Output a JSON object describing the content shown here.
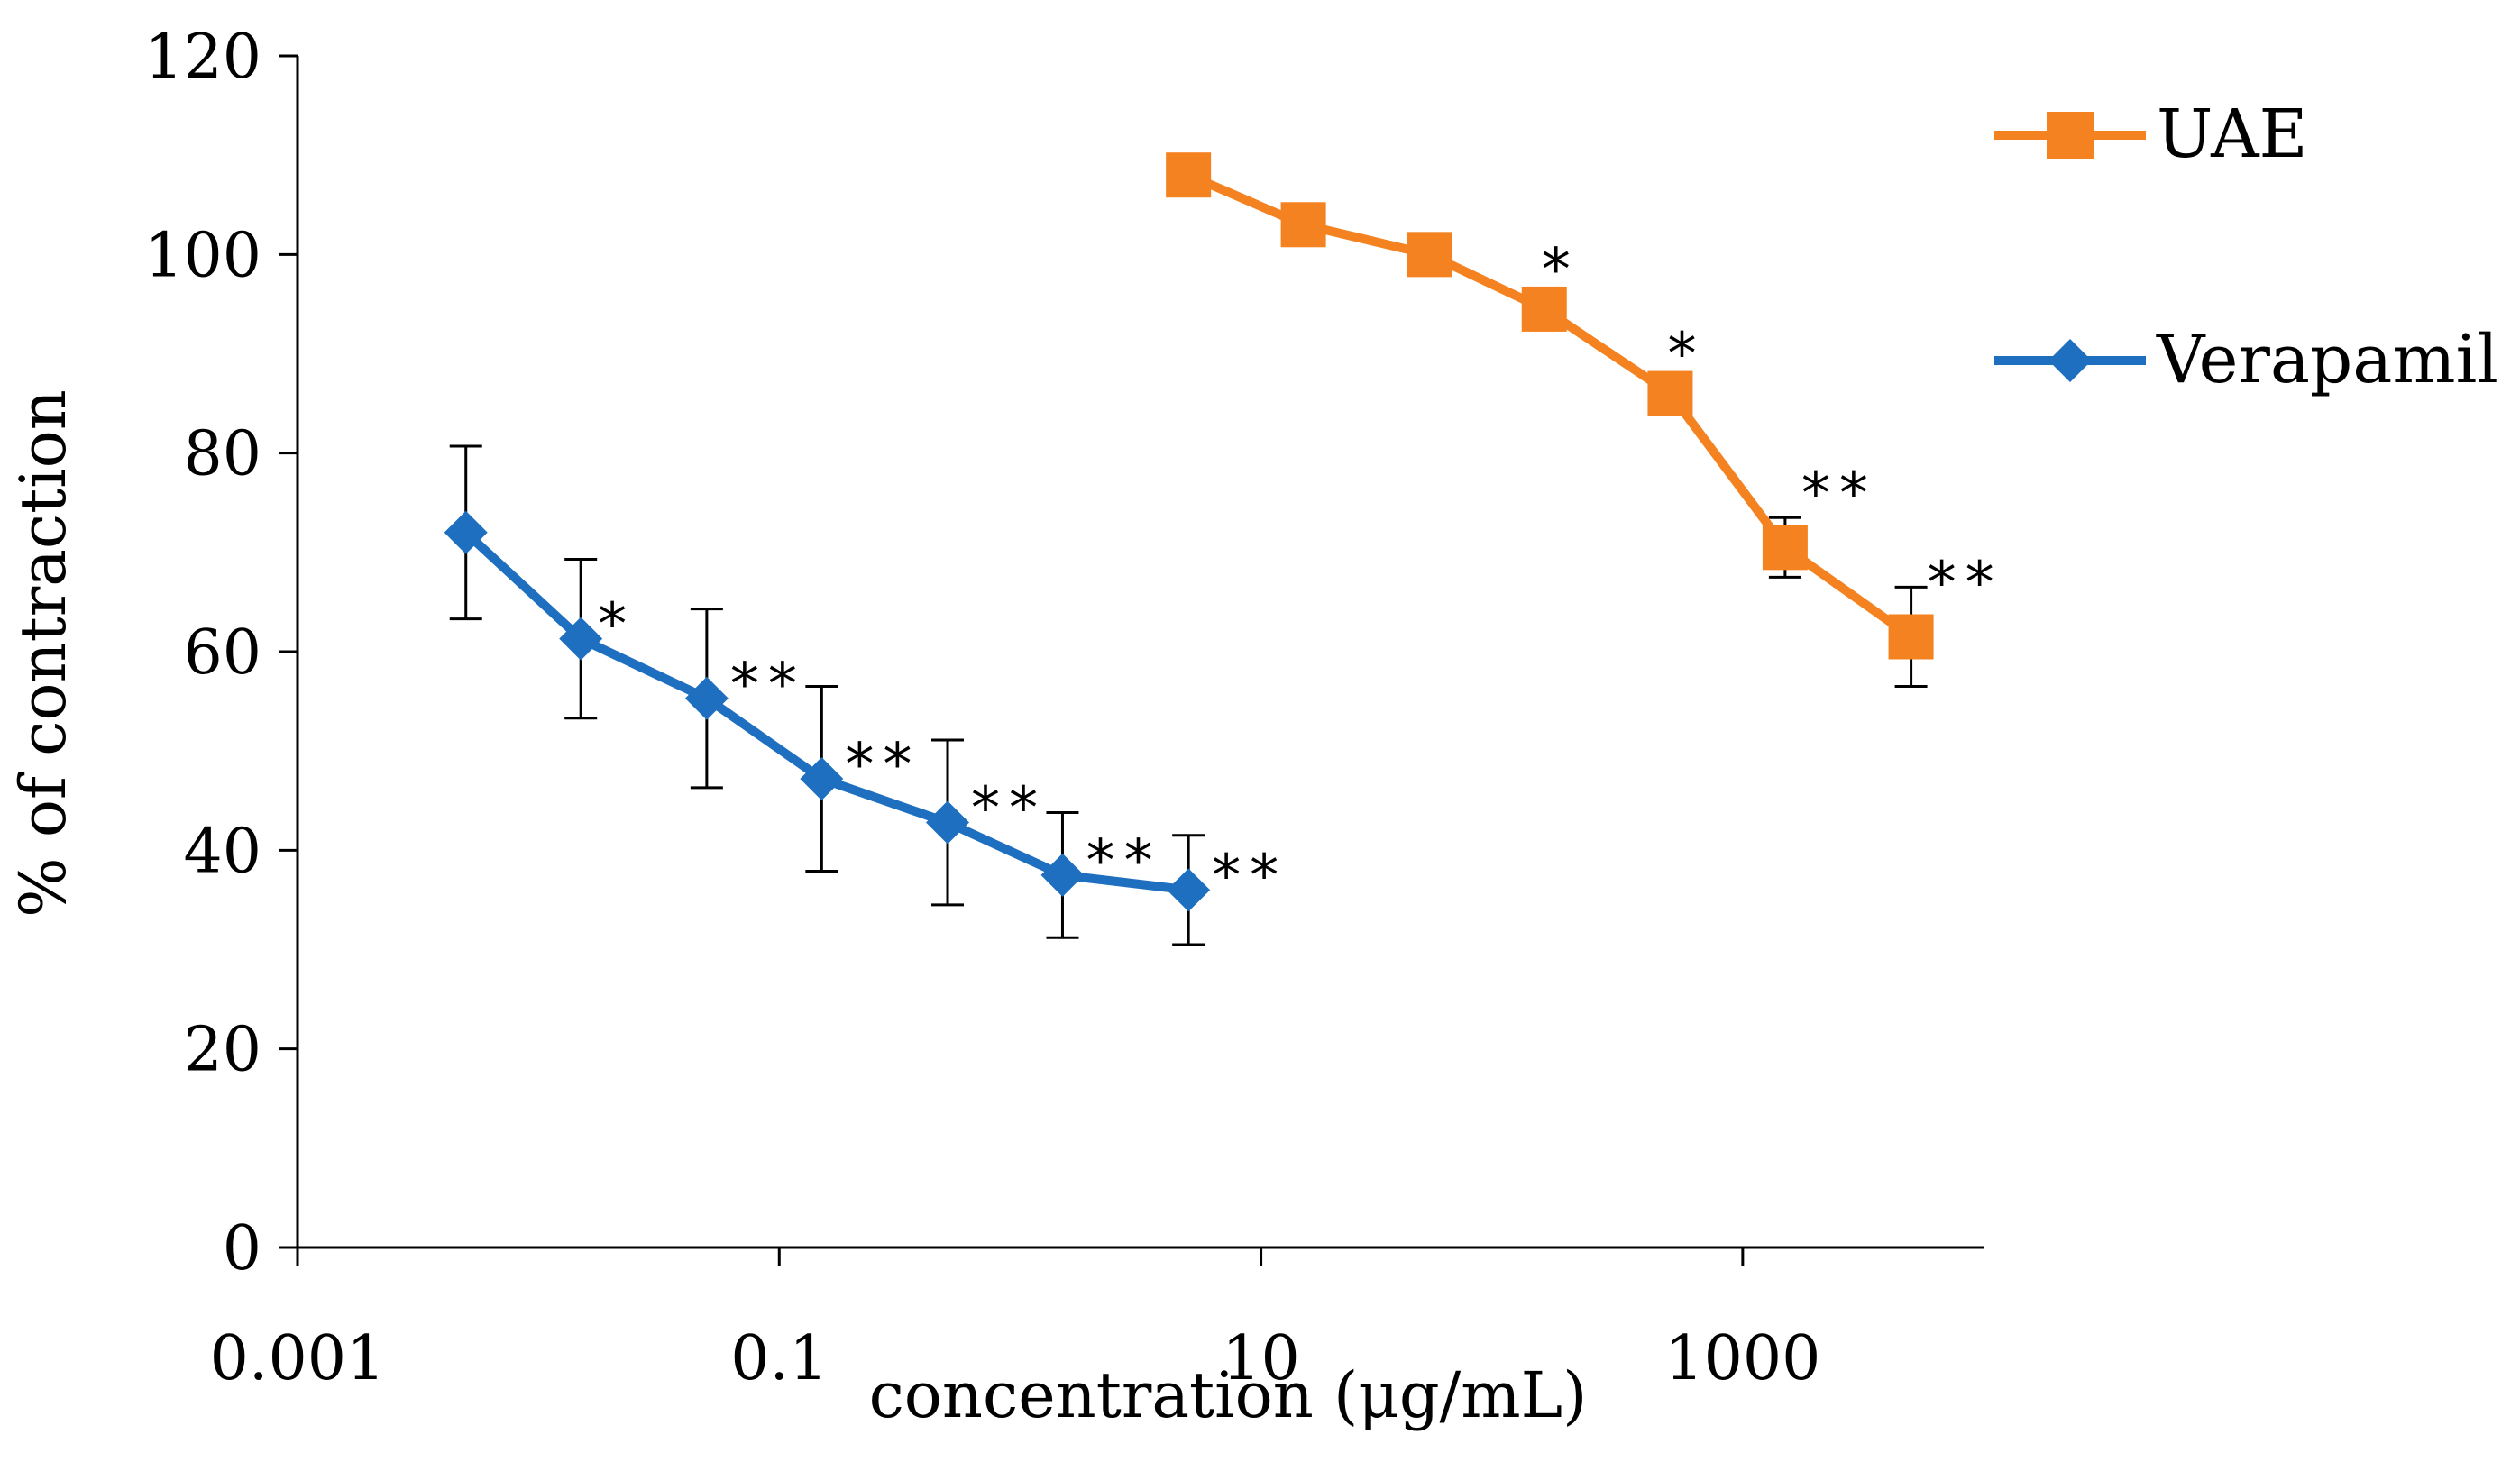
{
  "chart_data": {
    "type": "line",
    "title": "",
    "xlabel": "concentration (μg/mL)",
    "ylabel": "% of contraction",
    "xscale": "log",
    "xlim": [
      0.001,
      10000
    ],
    "ylim": [
      0,
      120
    ],
    "xticks": [
      0.001,
      0.1,
      10,
      1000
    ],
    "xtick_labels": [
      "0.001",
      "0.1",
      "10",
      "1000"
    ],
    "yticks": [
      0,
      20,
      40,
      60,
      80,
      100,
      120
    ],
    "ytick_labels": [
      "0",
      "20",
      "40",
      "60",
      "80",
      "100",
      "120"
    ],
    "grid": false,
    "legend_position": "top-right",
    "series": [
      {
        "name": "UAE",
        "color": "#F58220",
        "marker": "square",
        "x": [
          5,
          15,
          50,
          150,
          500,
          1500,
          5000
        ],
        "y": [
          108,
          103,
          100,
          94.5,
          86,
          70.5,
          61.5
        ],
        "error": [
          null,
          null,
          null,
          null,
          null,
          3,
          5
        ],
        "significance": [
          "",
          "",
          "",
          "*",
          "*",
          "**",
          "**"
        ]
      },
      {
        "name": "Verapamil",
        "color": "#1F6FC0",
        "marker": "diamond",
        "x": [
          0.005,
          0.015,
          0.05,
          0.15,
          0.5,
          1.5,
          5
        ],
        "y": [
          72,
          61.3,
          55.3,
          47.2,
          42.8,
          37.5,
          36
        ],
        "error": [
          8.7,
          8,
          9,
          9.3,
          8.3,
          6.3,
          5.5
        ],
        "significance": [
          "",
          "*",
          "**",
          "**",
          "**",
          "**",
          "**"
        ]
      }
    ]
  }
}
